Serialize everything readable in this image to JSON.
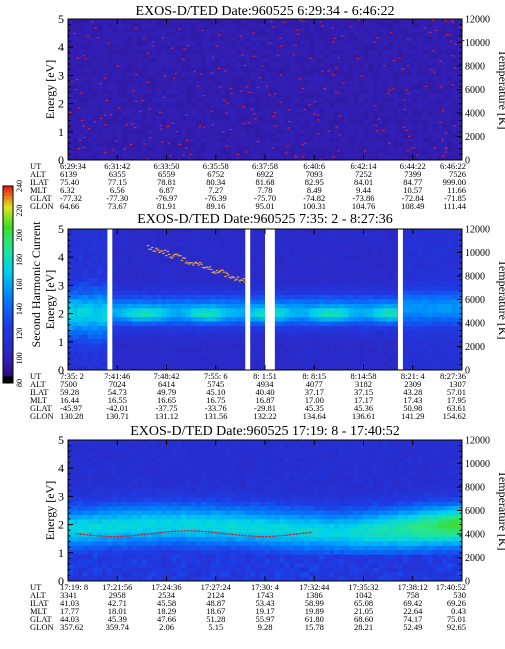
{
  "colorbar": {
    "label": "Second Harmonic Current",
    "ticks": [
      "80",
      "100",
      "120",
      "140",
      "160",
      "180",
      "200",
      "220",
      "240"
    ]
  },
  "chart_data": [
    {
      "type": "heatmap",
      "title": "EXOS-D/TED   Date:960525  6:29:34 - 6:46:22",
      "ylabel": "Energy [eV]",
      "y2label": "Temperature [K]",
      "ylim": [
        0,
        5
      ],
      "y2lim": [
        0,
        12000
      ],
      "yticks": [
        "0",
        "1",
        "2",
        "3",
        "4",
        "5"
      ],
      "y2ticks": [
        "0",
        "2000",
        "4000",
        "6000",
        "8000",
        "10000",
        "12000"
      ],
      "colormap": "rainbow",
      "table_labels": [
        "UT",
        "ALT",
        "ILAT",
        "MLT",
        "GLAT",
        "GLON"
      ],
      "table": [
        [
          "6:29:34",
          "6139",
          "75.40",
          "6.32",
          "-77.32",
          "64.66"
        ],
        [
          "6:31:42",
          "6355",
          "77.15",
          "6.56",
          "-77.30",
          "73.67"
        ],
        [
          "6:33:50",
          "6559",
          "78.81",
          "6.87",
          "-76.97",
          "81.91"
        ],
        [
          "6:35:58",
          "6752",
          "80.34",
          "7.27",
          "-76.39",
          "89.16"
        ],
        [
          "6:37:58",
          "6922",
          "81.68",
          "7.78",
          "-75.70",
          "95.01"
        ],
        [
          "6:40:6",
          "7093",
          "82.95",
          "8.49",
          "-74.82",
          "100.31"
        ],
        [
          "6:42:14",
          "7252",
          "84.01",
          "9.44",
          "-73.86",
          "104.76"
        ],
        [
          "6:44:22",
          "7399",
          "84.77",
          "10.57",
          "-72.84",
          "108.49"
        ],
        [
          "6:46:22",
          "7526",
          "999.00",
          "11.66",
          "-71.85",
          "111.44"
        ]
      ]
    },
    {
      "type": "heatmap",
      "title": "EXOS-D/TED   Date:960525   7:35: 2 - 8:27:36",
      "ylabel": "Energy [eV]",
      "y2label": "Temperature [K]",
      "ylim": [
        0,
        5
      ],
      "y2lim": [
        0,
        12000
      ],
      "yticks": [
        "0",
        "1",
        "2",
        "3",
        "4",
        "5"
      ],
      "y2ticks": [
        "0",
        "2000",
        "4000",
        "6000",
        "8000",
        "10000",
        "12000"
      ],
      "colormap": "rainbow",
      "table_labels": [
        "UT",
        "ALT",
        "ILAT",
        "MLT",
        "GLAT",
        "GLON"
      ],
      "table": [
        [
          "7:35: 2",
          "7500",
          "59.28",
          "16.44",
          "-45.97",
          "130.28"
        ],
        [
          "7:41:46",
          "7024",
          "54.73",
          "16.55",
          "-42.01",
          "130.71"
        ],
        [
          "7:48:42",
          "6414",
          "49.79",
          "16.65",
          "-37.75",
          "131.12"
        ],
        [
          "7:55: 6",
          "5745",
          "45.10",
          "16.75",
          "-33.76",
          "131.56"
        ],
        [
          "8: 1:51",
          "4934",
          "40.40",
          "16.87",
          "-29.81",
          "132.22"
        ],
        [
          "8: 8:15",
          "4077",
          "37.17",
          "17.00",
          "45.35",
          "134.64"
        ],
        [
          "8:14:58",
          "3182",
          "37.15",
          "17.17",
          "45.36",
          "136.61"
        ],
        [
          "8:21: 4",
          "2309",
          "43.28",
          "17.43",
          "50.98",
          "141.29"
        ],
        [
          "8:27:36",
          "1307",
          "57.01",
          "17.95",
          "63.61",
          "154.62"
        ]
      ]
    },
    {
      "type": "heatmap",
      "title": "EXOS-D/TED   Date:960525   17:19: 8 - 17:40:52",
      "ylabel": "Energy [eV]",
      "y2label": "Temperature [K]",
      "ylim": [
        0,
        5
      ],
      "y2lim": [
        0,
        12000
      ],
      "yticks": [
        "0",
        "1",
        "2",
        "3",
        "4",
        "5"
      ],
      "y2ticks": [
        "0",
        "2000",
        "4000",
        "6000",
        "8000",
        "10000",
        "12000"
      ],
      "colormap": "rainbow",
      "table_labels": [
        "UT",
        "ALT",
        "ILAT",
        "MLT",
        "GLAT",
        "GLON"
      ],
      "table": [
        [
          "17:19: 8",
          "3341",
          "41.03",
          "17.77",
          "44.03",
          "357.62"
        ],
        [
          "17:21:56",
          "2958",
          "42.71",
          "18.01",
          "45.39",
          "359.74"
        ],
        [
          "17:24:36",
          "2534",
          "45.58",
          "18.29",
          "47.66",
          "2.06"
        ],
        [
          "17:27:24",
          "2124",
          "48.87",
          "18.67",
          "51.28",
          "5.15"
        ],
        [
          "17:30: 4",
          "1743",
          "53.43",
          "19.17",
          "55.97",
          "9.28"
        ],
        [
          "17:32:44",
          "1386",
          "58.99",
          "19.89",
          "61.80",
          "15.78"
        ],
        [
          "17:35:32",
          "1042",
          "65.08",
          "21.05",
          "68.60",
          "28.21"
        ],
        [
          "17:38:12",
          "758",
          "69.42",
          "22.64",
          "74.17",
          "52.49"
        ],
        [
          "17:40:52",
          "530",
          "69.26",
          "0.43",
          "75.01",
          "92.65"
        ]
      ]
    }
  ]
}
